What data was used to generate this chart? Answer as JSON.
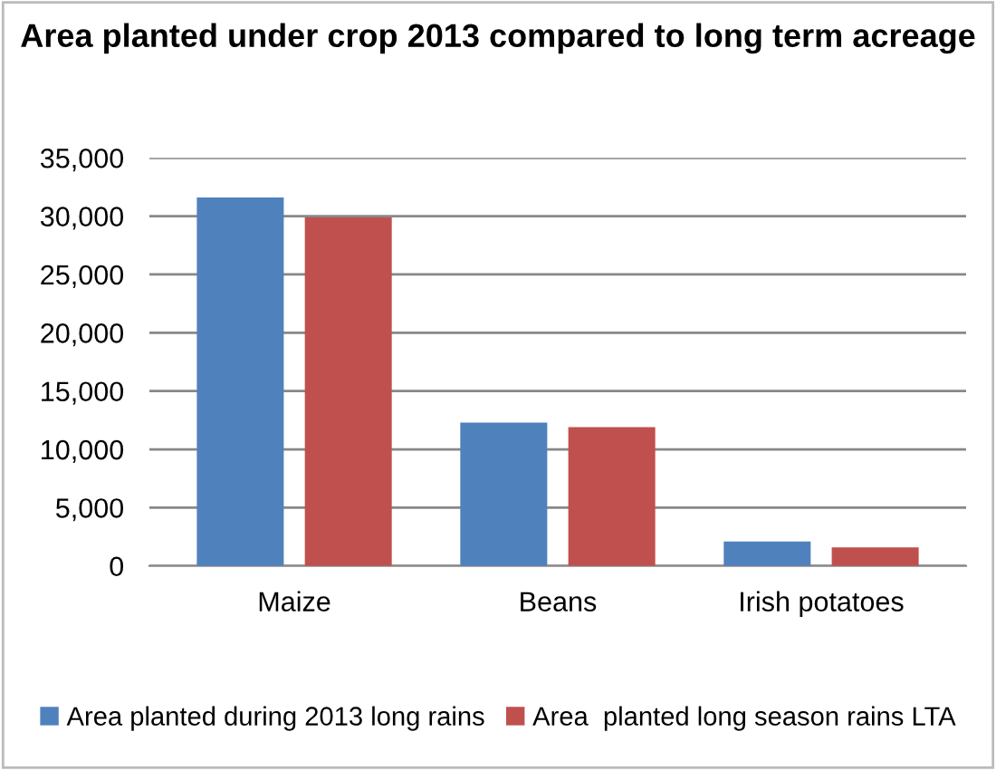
{
  "chart_data": {
    "type": "bar",
    "title": "Area planted under crop 2013 compared to long term acreage",
    "categories": [
      "Maize",
      "Beans",
      "Irish potatoes"
    ],
    "series": [
      {
        "name": "Area planted during 2013 long rains",
        "color": "#4f81bd",
        "values": [
          31600,
          12300,
          2100
        ]
      },
      {
        "name": "Area  planted long season rains LTA",
        "color": "#c0504d",
        "values": [
          29900,
          11900,
          1600
        ]
      }
    ],
    "ylim": [
      0,
      35000
    ],
    "yticks": [
      {
        "value": 0,
        "label": "0"
      },
      {
        "value": 5000,
        "label": "5,000"
      },
      {
        "value": 10000,
        "label": "10,000"
      },
      {
        "value": 15000,
        "label": "15,000"
      },
      {
        "value": 20000,
        "label": "20,000"
      },
      {
        "value": 25000,
        "label": "25,000"
      },
      {
        "value": 30000,
        "label": "30,000"
      },
      {
        "value": 35000,
        "label": "35,000"
      }
    ],
    "grid": "y",
    "legend": "bottom"
  }
}
